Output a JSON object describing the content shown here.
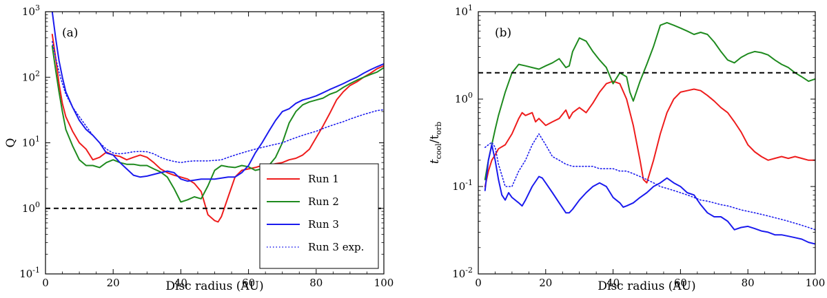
{
  "colors": {
    "run1": "#ee1c1c",
    "run2": "#1e8a1e",
    "run3": "#1a1aee",
    "axis": "#000000",
    "threshold": "#000000"
  },
  "chart_data": [
    {
      "type": "line",
      "panel_label": "(a)",
      "xlabel": "Disc radius (AU)",
      "ylabel": "Q",
      "xlim": [
        0,
        100
      ],
      "ylim": [
        0.1,
        1000
      ],
      "yscale": "log",
      "x_ticks": [
        0,
        20,
        40,
        60,
        80,
        100
      ],
      "x_tick_labels": [
        "0",
        "20",
        "40",
        "60",
        "80",
        "100"
      ],
      "y_ticks": [
        0.1,
        1,
        10,
        100,
        1000
      ],
      "y_tick_base": [
        "10",
        "10",
        "10",
        "10",
        "10"
      ],
      "y_tick_exp": [
        "-1",
        "0",
        "1",
        "2",
        "3"
      ],
      "hline": {
        "y": 1,
        "style": "dashed"
      },
      "legend": {
        "position": "lower-right",
        "entries": [
          "Run 1",
          "Run 2",
          "Run 3",
          "Run 3 exp."
        ]
      },
      "series": [
        {
          "name": "Run 1",
          "color_key": "run1",
          "style": "solid",
          "x": [
            2,
            3,
            4,
            5,
            6,
            8,
            10,
            12,
            14,
            16,
            18,
            20,
            22,
            24,
            26,
            28,
            30,
            32,
            34,
            36,
            38,
            40,
            42,
            44,
            46,
            47,
            48,
            50,
            51,
            52,
            54,
            56,
            58,
            60,
            62,
            64,
            66,
            68,
            70,
            72,
            74,
            76,
            78,
            80,
            82,
            84,
            86,
            88,
            90,
            92,
            94,
            96,
            98,
            100
          ],
          "y": [
            450,
            200,
            80,
            40,
            25,
            15,
            10,
            8,
            5.5,
            6,
            7.2,
            6.5,
            6.2,
            5.5,
            6,
            6.5,
            6,
            5,
            4,
            3.5,
            3.2,
            3,
            2.8,
            2.4,
            1.8,
            1.2,
            0.8,
            0.65,
            0.62,
            0.75,
            1.5,
            3,
            3.8,
            4,
            4.2,
            4.5,
            4.5,
            4.8,
            5,
            5.5,
            5.8,
            6.5,
            8,
            12,
            18,
            28,
            45,
            60,
            75,
            85,
            100,
            115,
            135,
            150
          ]
        },
        {
          "name": "Run 2",
          "color_key": "run2",
          "style": "solid",
          "x": [
            2,
            3,
            4,
            5,
            6,
            8,
            10,
            12,
            14,
            16,
            18,
            20,
            22,
            24,
            26,
            28,
            30,
            32,
            34,
            36,
            38,
            40,
            42,
            44,
            46,
            48,
            50,
            52,
            54,
            56,
            58,
            60,
            62,
            64,
            66,
            68,
            70,
            72,
            74,
            76,
            78,
            80,
            82,
            84,
            86,
            88,
            90,
            92,
            94,
            96,
            98,
            100
          ],
          "y": [
            300,
            130,
            60,
            30,
            16,
            9,
            5.5,
            4.5,
            4.5,
            4.2,
            5,
            5.5,
            5,
            4.7,
            4.7,
            4.5,
            4.5,
            4,
            3.6,
            3,
            2,
            1.25,
            1.35,
            1.5,
            1.4,
            2.2,
            3.8,
            4.5,
            4.3,
            4.2,
            4.5,
            4.3,
            3.8,
            4,
            4.5,
            6,
            10,
            20,
            30,
            38,
            42,
            45,
            48,
            55,
            60,
            70,
            80,
            90,
            100,
            110,
            120,
            140
          ]
        },
        {
          "name": "Run 3",
          "color_key": "run3",
          "style": "solid",
          "x": [
            2,
            3,
            4,
            5,
            6,
            8,
            10,
            12,
            14,
            16,
            18,
            20,
            22,
            24,
            26,
            28,
            30,
            32,
            34,
            36,
            38,
            40,
            42,
            44,
            46,
            48,
            50,
            52,
            54,
            56,
            58,
            60,
            62,
            64,
            66,
            68,
            70,
            72,
            74,
            76,
            78,
            80,
            82,
            84,
            86,
            88,
            90,
            92,
            94,
            96,
            98,
            100
          ],
          "y": [
            1000,
            400,
            180,
            100,
            60,
            35,
            22,
            16,
            13,
            10,
            7,
            6.5,
            5,
            4,
            3.2,
            3,
            3.1,
            3.3,
            3.5,
            3.7,
            3.5,
            2.8,
            2.6,
            2.7,
            2.8,
            2.8,
            2.8,
            2.9,
            3,
            3,
            3.5,
            4.5,
            7,
            10,
            15,
            22,
            30,
            33,
            40,
            45,
            48,
            52,
            58,
            65,
            72,
            80,
            90,
            100,
            115,
            130,
            145,
            160
          ]
        },
        {
          "name": "Run 3 exp.",
          "color_key": "run3",
          "style": "dotted",
          "x": [
            2,
            3,
            4,
            5,
            6,
            8,
            10,
            12,
            14,
            16,
            18,
            20,
            22,
            24,
            26,
            28,
            30,
            32,
            34,
            36,
            38,
            40,
            42,
            44,
            46,
            48,
            50,
            52,
            54,
            56,
            58,
            60,
            62,
            64,
            66,
            68,
            70,
            72,
            74,
            76,
            78,
            80,
            82,
            84,
            86,
            88,
            90,
            92,
            94,
            96,
            98,
            100
          ],
          "y": [
            350,
            200,
            120,
            80,
            55,
            35,
            25,
            18,
            13,
            10,
            8,
            7,
            6.8,
            7,
            7.3,
            7.4,
            7.3,
            6.8,
            6,
            5.5,
            5.2,
            5,
            5.2,
            5.3,
            5.3,
            5.3,
            5.4,
            5.5,
            6,
            6.5,
            7,
            7.5,
            8,
            8.5,
            9,
            9.5,
            10,
            11,
            12,
            13,
            14,
            15,
            16.5,
            18,
            19.5,
            21,
            23,
            25,
            27,
            29,
            31,
            32
          ]
        }
      ]
    },
    {
      "type": "line",
      "panel_label": "(b)",
      "xlabel": "Disc radius (AU)",
      "ylabel_main": "t",
      "ylabel_sub1": "cool",
      "ylabel_mid": "/t",
      "ylabel_sub2": "orb",
      "xlim": [
        0,
        100
      ],
      "ylim": [
        0.01,
        10
      ],
      "yscale": "log",
      "x_ticks": [
        0,
        20,
        40,
        60,
        80,
        100
      ],
      "x_tick_labels": [
        "0",
        "20",
        "40",
        "60",
        "80",
        "100"
      ],
      "y_ticks": [
        0.01,
        0.1,
        1,
        10
      ],
      "y_tick_base": [
        "10",
        "10",
        "10",
        "10"
      ],
      "y_tick_exp": [
        "-2",
        "-1",
        "0",
        "1"
      ],
      "hline": {
        "y": 2,
        "style": "dashed"
      },
      "series": [
        {
          "name": "Run 1",
          "color_key": "run1",
          "style": "solid",
          "x": [
            2,
            3,
            4,
            5,
            6,
            8,
            10,
            12,
            13,
            14,
            16,
            17,
            18,
            20,
            22,
            24,
            26,
            27,
            28,
            30,
            32,
            34,
            36,
            38,
            40,
            42,
            44,
            46,
            48,
            49,
            50,
            52,
            54,
            56,
            58,
            60,
            62,
            64,
            66,
            68,
            70,
            72,
            74,
            76,
            78,
            80,
            82,
            84,
            86,
            88,
            90,
            92,
            94,
            96,
            98,
            100
          ],
          "y": [
            0.1,
            0.15,
            0.2,
            0.23,
            0.27,
            0.3,
            0.4,
            0.6,
            0.7,
            0.65,
            0.7,
            0.55,
            0.6,
            0.5,
            0.55,
            0.6,
            0.75,
            0.6,
            0.7,
            0.8,
            0.7,
            0.9,
            1.2,
            1.5,
            1.6,
            1.5,
            1.0,
            0.5,
            0.2,
            0.12,
            0.11,
            0.2,
            0.4,
            0.7,
            1.0,
            1.2,
            1.25,
            1.3,
            1.25,
            1.1,
            0.95,
            0.8,
            0.7,
            0.55,
            0.42,
            0.3,
            0.25,
            0.22,
            0.2,
            0.21,
            0.22,
            0.21,
            0.22,
            0.21,
            0.2,
            0.2
          ]
        },
        {
          "name": "Run 2",
          "color_key": "run2",
          "style": "solid",
          "x": [
            2,
            3,
            4,
            5,
            6,
            8,
            10,
            12,
            14,
            16,
            18,
            20,
            22,
            24,
            26,
            27,
            28,
            30,
            32,
            34,
            36,
            38,
            40,
            42,
            44,
            45,
            46,
            48,
            50,
            52,
            54,
            56,
            58,
            60,
            62,
            64,
            66,
            68,
            70,
            72,
            74,
            76,
            78,
            80,
            82,
            84,
            86,
            88,
            90,
            92,
            94,
            96,
            98,
            100
          ],
          "y": [
            0.12,
            0.2,
            0.3,
            0.45,
            0.65,
            1.2,
            2.0,
            2.5,
            2.4,
            2.3,
            2.2,
            2.4,
            2.6,
            2.9,
            2.3,
            2.4,
            3.5,
            5.0,
            4.6,
            3.5,
            2.8,
            2.3,
            1.5,
            2.0,
            1.8,
            1.2,
            0.95,
            1.6,
            2.5,
            4.0,
            7.0,
            7.5,
            7.0,
            6.5,
            6.0,
            5.5,
            5.8,
            5.5,
            4.5,
            3.5,
            2.8,
            2.6,
            3.0,
            3.3,
            3.5,
            3.4,
            3.2,
            2.8,
            2.5,
            2.3,
            2.0,
            1.8,
            1.6,
            1.7
          ]
        },
        {
          "name": "Run 3",
          "color_key": "run3",
          "style": "solid",
          "x": [
            2,
            3,
            4,
            5,
            6,
            7,
            8,
            9,
            10,
            12,
            13,
            14,
            16,
            18,
            19,
            20,
            22,
            24,
            26,
            27,
            28,
            30,
            32,
            34,
            36,
            38,
            40,
            42,
            43,
            44,
            46,
            48,
            50,
            52,
            54,
            56,
            58,
            60,
            62,
            64,
            66,
            68,
            70,
            72,
            74,
            76,
            78,
            80,
            82,
            84,
            86,
            88,
            90,
            92,
            94,
            96,
            98,
            100
          ],
          "y": [
            0.09,
            0.2,
            0.3,
            0.2,
            0.12,
            0.08,
            0.07,
            0.085,
            0.075,
            0.065,
            0.06,
            0.07,
            0.1,
            0.13,
            0.125,
            0.11,
            0.085,
            0.065,
            0.05,
            0.05,
            0.055,
            0.07,
            0.085,
            0.1,
            0.11,
            0.1,
            0.075,
            0.065,
            0.058,
            0.06,
            0.065,
            0.075,
            0.085,
            0.1,
            0.11,
            0.125,
            0.11,
            0.1,
            0.085,
            0.08,
            0.062,
            0.05,
            0.045,
            0.045,
            0.04,
            0.032,
            0.034,
            0.035,
            0.033,
            0.031,
            0.03,
            0.028,
            0.028,
            0.027,
            0.026,
            0.025,
            0.023,
            0.022
          ]
        },
        {
          "name": "Run 3 exp.",
          "color_key": "run3",
          "style": "dotted",
          "x": [
            2,
            3,
            4,
            5,
            6,
            8,
            10,
            12,
            14,
            16,
            18,
            20,
            22,
            24,
            26,
            28,
            30,
            32,
            34,
            36,
            38,
            40,
            42,
            44,
            46,
            48,
            50,
            52,
            54,
            56,
            58,
            60,
            62,
            64,
            66,
            68,
            70,
            72,
            74,
            76,
            78,
            80,
            82,
            84,
            86,
            88,
            90,
            92,
            94,
            96,
            98,
            100
          ],
          "y": [
            0.28,
            0.3,
            0.32,
            0.28,
            0.18,
            0.1,
            0.1,
            0.15,
            0.2,
            0.3,
            0.4,
            0.3,
            0.22,
            0.2,
            0.18,
            0.17,
            0.17,
            0.17,
            0.17,
            0.16,
            0.16,
            0.16,
            0.15,
            0.15,
            0.14,
            0.13,
            0.12,
            0.11,
            0.1,
            0.095,
            0.09,
            0.085,
            0.08,
            0.075,
            0.07,
            0.068,
            0.065,
            0.062,
            0.06,
            0.057,
            0.054,
            0.052,
            0.05,
            0.048,
            0.046,
            0.044,
            0.042,
            0.04,
            0.038,
            0.036,
            0.034,
            0.032
          ]
        }
      ]
    }
  ]
}
